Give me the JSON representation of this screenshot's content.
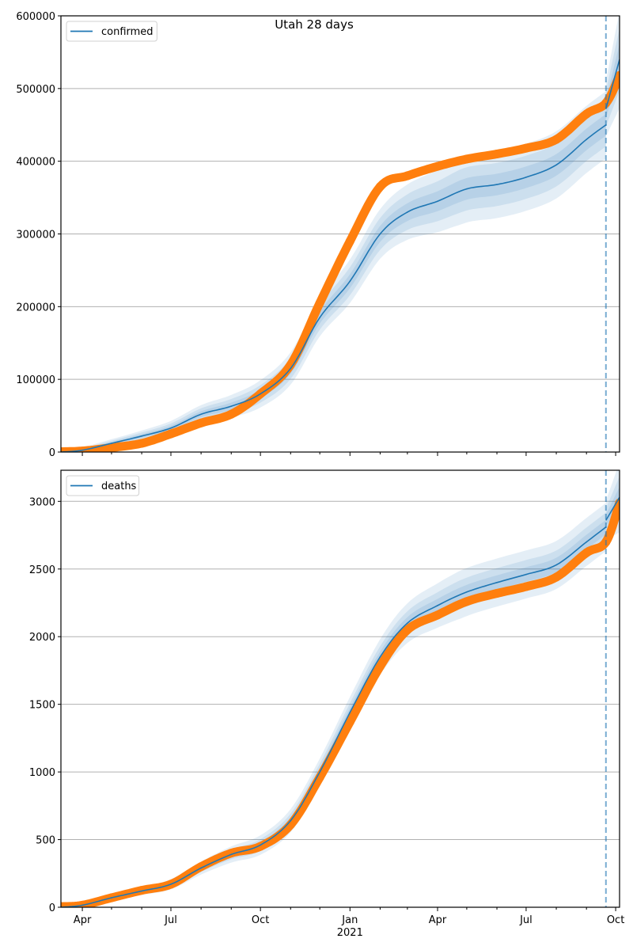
{
  "chart_data": [
    {
      "type": "line",
      "title": "Utah 28 days",
      "xlabel": "",
      "ylabel": "",
      "ylim": [
        0,
        600000
      ],
      "yticks": [
        0,
        100000,
        200000,
        300000,
        400000,
        500000,
        600000
      ],
      "ytick_labels": [
        "0",
        "100000",
        "200000",
        "300000",
        "400000",
        "500000",
        "600000"
      ],
      "grid": "y",
      "legend": {
        "position": "top-left",
        "entries": [
          "confirmed"
        ]
      },
      "x_dates": [
        "2020-03-10",
        "2020-04-01",
        "2020-05-01",
        "2020-06-01",
        "2020-07-01",
        "2020-08-01",
        "2020-09-01",
        "2020-10-01",
        "2020-11-01",
        "2020-12-01",
        "2021-01-01",
        "2021-02-01",
        "2021-03-01",
        "2021-04-01",
        "2021-05-01",
        "2021-06-01",
        "2021-07-01",
        "2021-08-01",
        "2021-09-01",
        "2021-09-21",
        "2021-10-05"
      ],
      "series": [
        {
          "name": "confirmed",
          "kind": "model-median",
          "color": "#1f77b4",
          "values": [
            0,
            2500,
            12000,
            22000,
            33000,
            52000,
            63000,
            80000,
            115000,
            185000,
            235000,
            300000,
            330000,
            345000,
            362000,
            368000,
            378000,
            395000,
            430000,
            450000,
            null
          ]
        },
        {
          "name": "confirmed-forecast",
          "kind": "model-forecast",
          "color": "#1f77b4",
          "x_dates": [
            "2021-09-21",
            "2021-10-05"
          ],
          "values": [
            472000,
            540000
          ]
        },
        {
          "name": "confirmed-observed",
          "kind": "observed",
          "color": "#ff7f0e",
          "values": [
            500,
            1500,
            6000,
            12000,
            25000,
            40000,
            52000,
            80000,
            120000,
            205000,
            290000,
            365000,
            380000,
            393000,
            403000,
            410000,
            418000,
            430000,
            465000,
            480000,
            518000
          ]
        }
      ],
      "bands": [
        {
          "level": "outer",
          "color": "#1f77b4",
          "opacity": 0.12,
          "half_width_fraction": 0.14
        },
        {
          "level": "middle",
          "color": "#1f77b4",
          "opacity": 0.12,
          "half_width_fraction": 0.09
        },
        {
          "level": "inner",
          "color": "#1f77b4",
          "opacity": 0.12,
          "half_width_fraction": 0.045
        }
      ],
      "vline": {
        "date": "2021-09-21",
        "style": "dashed",
        "color": "#1f77b4"
      }
    },
    {
      "type": "line",
      "title": "",
      "xlabel": "",
      "ylabel": "",
      "ylim": [
        0,
        3230
      ],
      "yticks": [
        0,
        500,
        1000,
        1500,
        2000,
        2500,
        3000
      ],
      "ytick_labels": [
        "0",
        "500",
        "1000",
        "1500",
        "2000",
        "2500",
        "3000"
      ],
      "grid": "y",
      "legend": {
        "position": "top-left",
        "entries": [
          "deaths"
        ]
      },
      "x_dates": [
        "2020-03-10",
        "2020-04-01",
        "2020-05-01",
        "2020-06-01",
        "2020-07-01",
        "2020-08-01",
        "2020-09-01",
        "2020-10-01",
        "2020-11-01",
        "2020-12-01",
        "2021-01-01",
        "2021-02-01",
        "2021-03-01",
        "2021-04-01",
        "2021-05-01",
        "2021-06-01",
        "2021-07-01",
        "2021-08-01",
        "2021-09-01",
        "2021-09-21",
        "2021-10-05"
      ],
      "series": [
        {
          "name": "deaths",
          "kind": "model-median",
          "color": "#1f77b4",
          "values": [
            0,
            15,
            70,
            120,
            170,
            290,
            390,
            460,
            640,
            1000,
            1440,
            1850,
            2100,
            2230,
            2330,
            2400,
            2460,
            2530,
            2700,
            2810,
            null
          ]
        },
        {
          "name": "deaths-forecast",
          "kind": "model-forecast",
          "color": "#1f77b4",
          "x_dates": [
            "2021-09-21",
            "2021-10-05"
          ],
          "values": [
            2860,
            3030
          ]
        },
        {
          "name": "deaths-observed",
          "kind": "observed",
          "color": "#ff7f0e",
          "values": [
            5,
            15,
            70,
            125,
            170,
            300,
            400,
            450,
            610,
            960,
            1370,
            1780,
            2050,
            2160,
            2260,
            2320,
            2370,
            2440,
            2620,
            2700,
            2990
          ]
        }
      ],
      "bands": [
        {
          "level": "outer",
          "color": "#1f77b4",
          "opacity": 0.12,
          "half_width_fraction": 0.1
        },
        {
          "level": "middle",
          "color": "#1f77b4",
          "opacity": 0.12,
          "half_width_fraction": 0.06
        },
        {
          "level": "inner",
          "color": "#1f77b4",
          "opacity": 0.12,
          "half_width_fraction": 0.03
        }
      ],
      "vline": {
        "date": "2021-09-21",
        "style": "dashed",
        "color": "#1f77b4"
      }
    }
  ],
  "x_axis": {
    "domain": [
      "2020-03-10",
      "2021-10-05"
    ],
    "major_ticks": [
      {
        "date": "2020-04-01",
        "label": "Apr"
      },
      {
        "date": "2020-07-01",
        "label": "Jul"
      },
      {
        "date": "2020-10-01",
        "label": "Oct"
      },
      {
        "date": "2021-01-01",
        "label": "Jan"
      },
      {
        "date": "2021-04-01",
        "label": "Apr"
      },
      {
        "date": "2021-07-01",
        "label": "Jul"
      },
      {
        "date": "2021-10-01",
        "label": "Oct"
      }
    ],
    "year_label": {
      "date": "2021-01-01",
      "label": "2021"
    },
    "minor_ticks": [
      "2020-05-01",
      "2020-06-01",
      "2020-08-01",
      "2020-09-01",
      "2020-11-01",
      "2020-12-01",
      "2021-02-01",
      "2021-03-01",
      "2021-05-01",
      "2021-06-01",
      "2021-08-01",
      "2021-09-01"
    ]
  }
}
